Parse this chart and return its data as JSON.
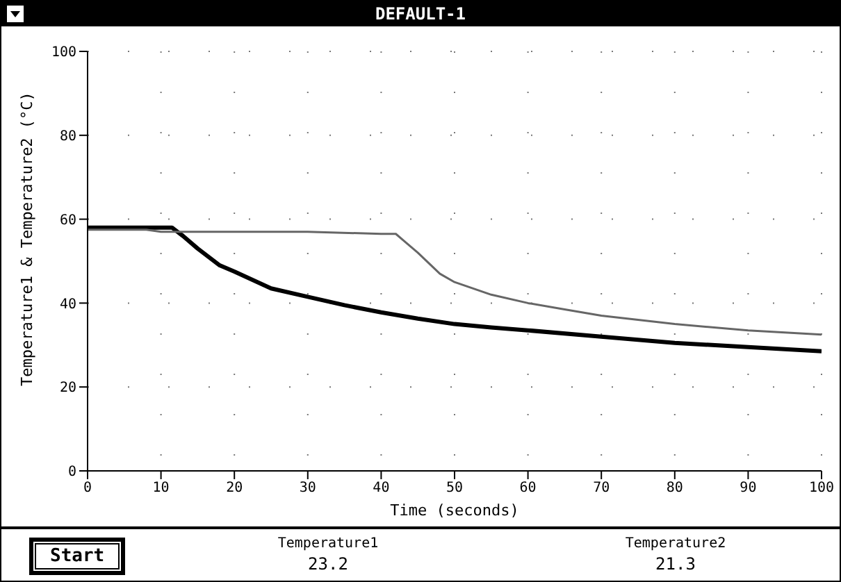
{
  "chart_data": {
    "type": "line",
    "title": "DEFAULT-1",
    "xlabel": "Time (seconds)",
    "ylabel": "Temperature1 & Temperature2 (°C)",
    "xlim": [
      0,
      100
    ],
    "ylim": [
      0,
      100
    ],
    "xticks": [
      0,
      10,
      20,
      30,
      40,
      50,
      60,
      70,
      80,
      90,
      100
    ],
    "yticks": [
      0,
      20,
      40,
      60,
      80,
      100
    ],
    "grid": true,
    "legend": false,
    "marker": "none",
    "line_style": "solid",
    "series": [
      {
        "color": "#000000",
        "x": [
          0,
          5,
          11.5,
          13,
          15,
          18,
          20,
          25,
          30,
          35,
          40,
          45,
          50,
          55,
          60,
          70,
          80,
          90,
          100
        ],
        "values": [
          58,
          58,
          58,
          56,
          53,
          49,
          47.5,
          43.5,
          41.5,
          39.5,
          37.8,
          36.3,
          35,
          34.2,
          33.5,
          32,
          30.5,
          29.5,
          28.5
        ]
      },
      {
        "color": "#666666",
        "x": [
          0,
          8,
          10,
          20,
          30,
          40,
          42,
          43,
          45,
          48,
          50,
          55,
          60,
          65,
          70,
          80,
          90,
          100
        ],
        "values": [
          57.5,
          57.5,
          57,
          57,
          57,
          56.5,
          56.5,
          55,
          52,
          47,
          45,
          42,
          40,
          38.5,
          37,
          35,
          33.5,
          32.5
        ]
      }
    ],
    "annotations": [
      "Start",
      "Temperature1",
      "23.2",
      "Temperature2",
      "21.3"
    ]
  }
}
